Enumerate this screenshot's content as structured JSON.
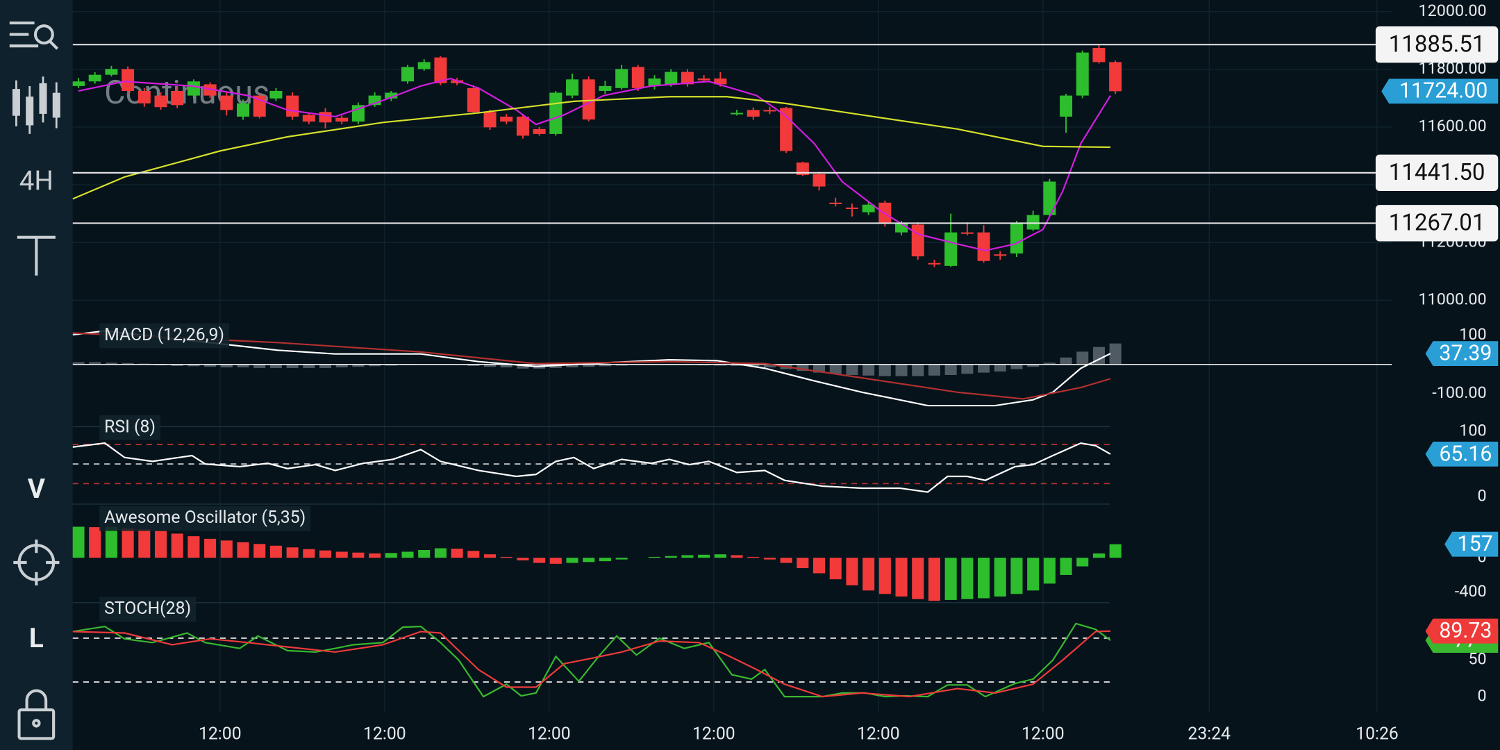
{
  "toolbar": {
    "labels": [
      "4H",
      "V",
      "L"
    ]
  },
  "chart_data": [
    {
      "type": "candlestick",
      "watermark": "Continuous",
      "open": [
        11742,
        11758,
        11781,
        11801,
        11725,
        11709,
        11725,
        11709,
        11748,
        11709,
        11636,
        11709,
        11699,
        11709,
        11642,
        11652,
        11632,
        11619,
        11676,
        11699,
        11758,
        11801,
        11841,
        11762,
        11735,
        11652,
        11636,
        11636,
        11593,
        11576,
        11709,
        11765,
        11725,
        11735,
        11808,
        11742,
        11748,
        11791,
        11768,
        11768,
        11649,
        11659,
        11659,
        11666,
        11477,
        11437,
        11338,
        11321,
        11305,
        11338,
        11235,
        11262,
        11129,
        11119,
        11235,
        11235,
        11159,
        11162,
        11245,
        11295,
        11636,
        11709,
        11874,
        11825
      ],
      "high": [
        11770,
        11790,
        11812,
        11810,
        11735,
        11720,
        11740,
        11765,
        11755,
        11720,
        11695,
        11715,
        11735,
        11720,
        11650,
        11665,
        11640,
        11685,
        11720,
        11725,
        11815,
        11835,
        11845,
        11770,
        11745,
        11660,
        11645,
        11645,
        11600,
        11725,
        11785,
        11775,
        11760,
        11815,
        11815,
        11780,
        11800,
        11800,
        11780,
        11790,
        11660,
        11668,
        11670,
        11670,
        11480,
        11445,
        11355,
        11335,
        11340,
        11345,
        11275,
        11270,
        11140,
        11300,
        11270,
        11260,
        11170,
        11275,
        11310,
        11420,
        11715,
        11865,
        11885,
        11830
      ],
      "low": [
        11735,
        11750,
        11775,
        11715,
        11670,
        11660,
        11665,
        11700,
        11700,
        11640,
        11625,
        11630,
        11690,
        11625,
        11610,
        11595,
        11610,
        11610,
        11670,
        11690,
        11750,
        11795,
        11745,
        11745,
        11645,
        11590,
        11610,
        11560,
        11570,
        11570,
        11700,
        11620,
        11715,
        11730,
        11725,
        11730,
        11740,
        11740,
        11755,
        11740,
        11640,
        11625,
        11645,
        11510,
        11430,
        11380,
        11325,
        11290,
        11295,
        11255,
        11225,
        11140,
        11115,
        11115,
        11225,
        11130,
        11140,
        11150,
        11240,
        11290,
        11580,
        11700,
        11820,
        11715
      ],
      "close": [
        11758,
        11781,
        11801,
        11725,
        11682,
        11669,
        11676,
        11758,
        11709,
        11659,
        11682,
        11636,
        11725,
        11636,
        11619,
        11616,
        11619,
        11676,
        11709,
        11719,
        11808,
        11825,
        11752,
        11752,
        11652,
        11599,
        11619,
        11570,
        11576,
        11719,
        11765,
        11626,
        11742,
        11801,
        11735,
        11768,
        11791,
        11748,
        11762,
        11748,
        11649,
        11636,
        11655,
        11517,
        11434,
        11394,
        11335,
        11318,
        11331,
        11268,
        11268,
        11152,
        11126,
        11235,
        11232,
        11136,
        11156,
        11268,
        11295,
        11411,
        11709,
        11858,
        11825,
        11724
      ],
      "up_color": "#2dbd2d",
      "down_color": "#f23a3a",
      "xlim": [
        -0.35,
        79.8
      ],
      "xticks": [
        {
          "value": 8.6,
          "label": "12:00"
        },
        {
          "value": 18.6,
          "label": "12:00"
        },
        {
          "value": 28.6,
          "label": "12:00"
        },
        {
          "value": 38.6,
          "label": "12:00"
        },
        {
          "value": 48.6,
          "label": "12:00"
        },
        {
          "value": 58.6,
          "label": "12:00"
        },
        {
          "value": 68.7,
          "label": "23:24"
        },
        {
          "value": 78.9,
          "label": "10:26"
        }
      ],
      "ylim": [
        10920,
        12040
      ],
      "yticks": [
        {
          "value": 11000,
          "label": "11000.00"
        },
        {
          "value": 11200,
          "label": "11200.00"
        },
        {
          "value": 11400,
          "label": "11400.00"
        },
        {
          "value": 11600,
          "label": "11600.00"
        },
        {
          "value": 11800,
          "label": "11800.00"
        },
        {
          "value": 12000,
          "label": "12000.00"
        }
      ],
      "grid": true,
      "series": [
        {
          "color": "#d21ee0",
          "x": [
            0,
            2.8,
            6.9,
            10.3,
            12.7,
            15.6,
            18.5,
            20.8,
            22.6,
            24.3,
            26.6,
            27.8,
            29.5,
            31.9,
            34.8,
            38.3,
            41.2,
            42.9,
            44.7,
            46.4,
            48.7,
            51.0,
            53.4,
            55.1,
            56.9,
            58.6,
            59.8,
            60.9,
            62.7
          ],
          "values": [
            11725,
            11758,
            11742,
            11709,
            11659,
            11636,
            11692,
            11742,
            11768,
            11735,
            11659,
            11609,
            11642,
            11709,
            11742,
            11758,
            11709,
            11642,
            11543,
            11411,
            11311,
            11229,
            11195,
            11172,
            11195,
            11245,
            11378,
            11543,
            11709
          ]
        },
        {
          "color": "#d4e02a",
          "x": [
            -0.35,
            2.8,
            8.6,
            12.7,
            18.5,
            24.3,
            30.1,
            35.9,
            39.4,
            42.9,
            47.6,
            53.4,
            58.6,
            62.7
          ],
          "values": [
            11351,
            11427,
            11517,
            11566,
            11616,
            11649,
            11689,
            11705,
            11705,
            11682,
            11642,
            11593,
            11533,
            11530
          ]
        }
      ],
      "levels": [
        11885.51,
        {
          "value": 11441.5,
          "label": "11441.50"
        },
        11267.01
      ],
      "last_price": {
        "value": 11724,
        "label": "11724.00"
      }
    },
    {
      "type": "macd",
      "title": "MACD (12,26,9)",
      "histogram": [
        8,
        8,
        6,
        5,
        3,
        -3,
        -5,
        -6,
        -8,
        -10,
        -10,
        -12,
        -12,
        -12,
        -12,
        -12,
        -10,
        -8,
        -6,
        -4,
        -2,
        0,
        0,
        0,
        -5,
        -8,
        -10,
        -14,
        -14,
        -12,
        -10,
        -8,
        -6,
        -4,
        -2,
        -2,
        -2,
        -2,
        -3,
        -4,
        -5,
        -6,
        -10,
        -16,
        -22,
        -28,
        -32,
        -36,
        -38,
        -40,
        -40,
        -40,
        -38,
        -36,
        -32,
        -28,
        -24,
        -16,
        -8,
        6,
        24,
        44,
        60,
        72
      ],
      "histogram_color": "#4f5a63",
      "series": [
        {
          "color": "#ffffff",
          "x": [
            -0.35,
            1.6,
            12.1,
            15.6,
            20.8,
            24.3,
            27.8,
            32.4,
            35.9,
            38.8,
            41.7,
            44.7,
            47.6,
            51.6,
            55.7,
            58.0,
            59.2,
            60.9,
            62.7
          ],
          "values": [
            102,
            115,
            49,
            36,
            36,
            10,
            -7,
            7,
            16,
            13,
            -13,
            -56,
            -95,
            -141,
            -141,
            -121,
            -95,
            -13,
            37.39
          ]
        },
        {
          "color": "#b3302f",
          "x": [
            -0.35,
            12.1,
            20.8,
            27.8,
            35.9,
            41.7,
            47.6,
            53.4,
            57.4,
            60.9,
            62.7
          ],
          "values": [
            108,
            75,
            43,
            3,
            10,
            3,
            -46,
            -95,
            -118,
            -79,
            -49
          ]
        }
      ],
      "ylim": [
        -193.5,
        134.5
      ],
      "yticks": [
        100,
        {
          "value": -100,
          "label": "-100.00"
        }
      ]
    },
    {
      "type": "rsi",
      "title": "RSI (8)",
      "series": [
        {
          "color": "#ffffff",
          "x": [
            -0.35,
            1.6,
            2.8,
            4.5,
            6.9,
            7.7,
            9.8,
            11.5,
            12.7,
            14.4,
            15.6,
            17.3,
            19.1,
            20.8,
            22.0,
            24.3,
            26.6,
            27.8,
            29.0,
            30.1,
            31.3,
            33.0,
            34.8,
            35.9,
            37.1,
            38.3,
            40.0,
            41.7,
            42.9,
            45.2,
            47.6,
            49.9,
            51.6,
            52.8,
            54.0,
            55.1,
            56.9,
            58.0,
            59.2,
            60.9,
            61.8,
            62.7
          ],
          "values": [
            76,
            82,
            60,
            54,
            63,
            50,
            46,
            51,
            43,
            49,
            40,
            51,
            57,
            72,
            54,
            40,
            31,
            34,
            54,
            60,
            43,
            57,
            51,
            57,
            49,
            54,
            37,
            40,
            25,
            16,
            13,
            13,
            7,
            31,
            31,
            25,
            46,
            49,
            63,
            82,
            78,
            65.16
          ]
        }
      ],
      "levels": [
        80,
        50,
        20
      ],
      "level_colors": [
        "#b3302f",
        "#d0d0d0",
        "#b3302f"
      ],
      "ylim": [
        -13,
        116
      ],
      "yticks": [
        0,
        100
      ]
    },
    {
      "type": "ao",
      "title": "Awesome Oscillator (5,35)",
      "values": [
        360,
        355,
        358,
        345,
        330,
        310,
        280,
        250,
        220,
        200,
        180,
        160,
        140,
        120,
        100,
        85,
        70,
        60,
        50,
        55,
        70,
        90,
        110,
        105,
        80,
        40,
        10,
        -30,
        -60,
        -70,
        -60,
        -50,
        -40,
        -20,
        0,
        10,
        20,
        30,
        35,
        40,
        30,
        10,
        -20,
        -60,
        -120,
        -180,
        -250,
        -320,
        -380,
        -420,
        -450,
        -480,
        -500,
        -490,
        -480,
        -470,
        -450,
        -420,
        -380,
        -300,
        -200,
        -100,
        50,
        157
      ],
      "up_color": "#2dbd2d",
      "down_color": "#f23a3a",
      "ylim": [
        -577,
        611
      ],
      "yticks": [
        0,
        -400
      ]
    },
    {
      "type": "stoch",
      "title": "STOCH(28)",
      "series": [
        {
          "color": "#39b82f",
          "x": [
            -0.35,
            1.6,
            2.8,
            4.5,
            6.6,
            7.7,
            9.8,
            10.9,
            12.7,
            14.4,
            15.6,
            16.7,
            18.5,
            19.7,
            20.8,
            22.0,
            23.1,
            24.6,
            26.0,
            26.9,
            27.8,
            29.0,
            30.4,
            31.6,
            32.7,
            33.9,
            35.3,
            36.8,
            38.3,
            39.7,
            40.9,
            41.7,
            42.9,
            45.2,
            46.4,
            47.8,
            49.0,
            50.2,
            51.6,
            52.8,
            54.0,
            55.1,
            56.9,
            58.0,
            59.2,
            60.6,
            61.8,
            62.7
          ],
          "values": [
            89,
            96,
            79,
            74,
            87,
            74,
            66,
            83,
            63,
            61,
            66,
            71,
            74,
            95,
            96,
            74,
            50,
            0,
            17,
            1,
            5,
            55,
            21,
            55,
            83,
            57,
            80,
            66,
            74,
            30,
            24,
            37,
            0,
            0,
            5,
            5,
            0,
            1,
            0,
            16,
            16,
            0,
            18,
            24,
            50,
            100,
            92,
            77
          ]
        },
        {
          "color": "#ef3a3a",
          "x": [
            -0.35,
            2.8,
            5.7,
            8.0,
            10.3,
            12.7,
            15.6,
            18.5,
            20.8,
            22.0,
            23.1,
            24.3,
            26.0,
            27.8,
            29.5,
            31.3,
            33.0,
            35.3,
            37.7,
            39.4,
            41.2,
            42.9,
            45.2,
            47.6,
            50.5,
            53.4,
            55.7,
            58.0,
            59.8,
            61.8,
            62.7
          ],
          "values": [
            89,
            87,
            71,
            79,
            74,
            68,
            61,
            71,
            89,
            87,
            63,
            37,
            13,
            13,
            45,
            53,
            61,
            76,
            74,
            57,
            37,
            17,
            0,
            5,
            0,
            11,
            5,
            17,
            50,
            89,
            89.73
          ]
        }
      ],
      "levels": [
        80,
        20
      ],
      "ylim": [
        -22,
        122
      ],
      "yticks": [
        0,
        50
      ]
    }
  ]
}
